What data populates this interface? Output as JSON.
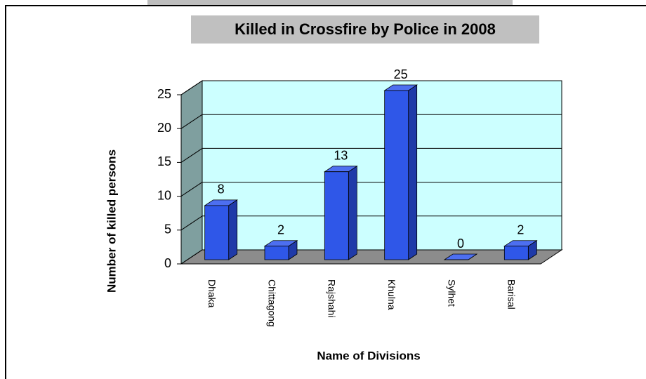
{
  "chart_data": {
    "type": "bar3d",
    "title": "Killed in Crossfire by Police in 2008",
    "x_label": "Name of Divisions",
    "y_label": "Number of killed persons",
    "categories": [
      "Dhaka",
      "Chittagong",
      "Rajshahi",
      "Khulna",
      "Sylhet",
      "Barisal"
    ],
    "values": [
      8,
      2,
      13,
      25,
      0,
      2
    ],
    "color": "#2f57e8",
    "ylim": [
      0,
      25
    ],
    "yticks": [
      0,
      5,
      10,
      15,
      20,
      25
    ],
    "grid": true
  }
}
